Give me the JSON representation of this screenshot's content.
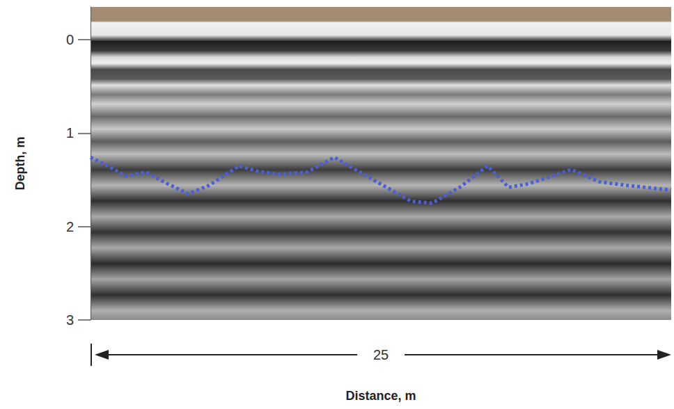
{
  "chart_data": {
    "type": "line",
    "x_label": "Distance, m",
    "y_label": "Depth, m",
    "x": [
      0,
      0.75,
      1.5,
      2.4,
      3.3,
      4.2,
      5.1,
      6.4,
      7.2,
      8.1,
      9.3,
      10.5,
      11.4,
      12.6,
      13.8,
      14.7,
      15.9,
      17.1,
      18.0,
      18.9,
      20.7,
      21.9,
      23.1,
      25
    ],
    "series": [
      {
        "color": "#4b5fd6",
        "line_style": "dotted",
        "values": [
          1.26,
          1.35,
          1.46,
          1.42,
          1.54,
          1.65,
          1.56,
          1.35,
          1.41,
          1.44,
          1.42,
          1.26,
          1.39,
          1.56,
          1.73,
          1.75,
          1.58,
          1.35,
          1.58,
          1.54,
          1.39,
          1.52,
          1.56,
          1.61
        ]
      }
    ],
    "xlim": [
      0,
      25
    ],
    "ylim": [
      3,
      -0.35
    ],
    "yticks": [
      0,
      1,
      2,
      3
    ],
    "grid": false,
    "tick_labels": "y",
    "annotations": [
      {
        "text": "25",
        "x": [
          0,
          25
        ]
      }
    ]
  }
}
